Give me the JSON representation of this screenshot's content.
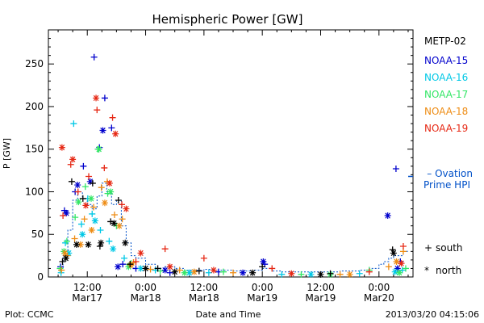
{
  "chart_data": {
    "type": "scatter",
    "title": "Hemispheric Power [GW]",
    "ylabel": "P [GW]",
    "xlabel": "Date and Time",
    "ylim": [
      0,
      290
    ],
    "y_ticks": [
      0,
      50,
      100,
      150,
      200,
      250
    ],
    "x_unit": "hours since 2013/03/16 00:00",
    "xlim": [
      28,
      103
    ],
    "x_ticks": [
      {
        "x": 36,
        "label": "12:00",
        "sublabel": "Mar17"
      },
      {
        "x": 48,
        "label": "0:00",
        "sublabel": "Mar18"
      },
      {
        "x": 60,
        "label": "12:00",
        "sublabel": "Mar18"
      },
      {
        "x": 72,
        "label": "0:00",
        "sublabel": "Mar19"
      },
      {
        "x": 84,
        "label": "12:00",
        "sublabel": "Mar19"
      },
      {
        "x": 96,
        "label": "0:00",
        "sublabel": "Mar20"
      }
    ],
    "legend_title": "METP-02",
    "legend_position": "right",
    "markers": [
      {
        "symbol": "+",
        "label": "south"
      },
      {
        "symbol": "*",
        "label": "north"
      }
    ],
    "series": [
      {
        "name": "NOAA-15",
        "color": "#0000cc",
        "south": [
          [
            30.5,
            12
          ],
          [
            31.3,
            78
          ],
          [
            33.5,
            100
          ],
          [
            35.2,
            130
          ],
          [
            37.4,
            258
          ],
          [
            38.5,
            152
          ],
          [
            39.6,
            210
          ],
          [
            41.0,
            175
          ],
          [
            43.3,
            15
          ],
          [
            46.0,
            10
          ],
          [
            53.0,
            5
          ],
          [
            63.0,
            6
          ],
          [
            72.5,
            15
          ],
          [
            99.5,
            127
          ],
          [
            100.4,
            18
          ]
        ],
        "north": [
          [
            31.7,
            75
          ],
          [
            34.0,
            108
          ],
          [
            36.6,
            112
          ],
          [
            39.2,
            172
          ],
          [
            42.3,
            12
          ],
          [
            52.0,
            8
          ],
          [
            68.0,
            5
          ],
          [
            72.2,
            18
          ],
          [
            97.8,
            72
          ],
          [
            99.8,
            10
          ]
        ]
      },
      {
        "name": "NOAA-16",
        "color": "#00c8e6",
        "south": [
          [
            30.6,
            5
          ],
          [
            31.5,
            40
          ],
          [
            33.2,
            180
          ],
          [
            34.8,
            62
          ],
          [
            36.1,
            92
          ],
          [
            37.0,
            74
          ],
          [
            38.7,
            55
          ],
          [
            40.5,
            42
          ],
          [
            43.6,
            22
          ],
          [
            50.0,
            8
          ],
          [
            61.0,
            5
          ],
          [
            76.0,
            3
          ],
          [
            92.0,
            4
          ],
          [
            100.8,
            8
          ]
        ],
        "north": [
          [
            32.2,
            28
          ],
          [
            35.0,
            50
          ],
          [
            37.6,
            66
          ],
          [
            41.3,
            33
          ],
          [
            47.0,
            10
          ],
          [
            57.0,
            5
          ],
          [
            82.0,
            3
          ],
          [
            99.3,
            6
          ]
        ]
      },
      {
        "name": "NOAA-17",
        "color": "#33e666",
        "south": [
          [
            30.4,
            10
          ],
          [
            31.8,
            42
          ],
          [
            33.5,
            70
          ],
          [
            35.6,
            106
          ],
          [
            38.2,
            150
          ],
          [
            40.2,
            98
          ],
          [
            42.0,
            60
          ],
          [
            45.0,
            16
          ],
          [
            51.0,
            7
          ],
          [
            64.0,
            6
          ],
          [
            80.0,
            3
          ],
          [
            94.0,
            8
          ],
          [
            101.5,
            10
          ]
        ],
        "north": [
          [
            31.2,
            30
          ],
          [
            34.2,
            88
          ],
          [
            36.8,
            92
          ],
          [
            38.4,
            150
          ],
          [
            40.8,
            100
          ],
          [
            44.5,
            12
          ],
          [
            56.0,
            5
          ],
          [
            86.0,
            3
          ],
          [
            100.2,
            5
          ]
        ]
      },
      {
        "name": "NOAA-18",
        "color": "#ee8c14",
        "south": [
          [
            30.7,
            8
          ],
          [
            31.9,
            25
          ],
          [
            33.4,
            45
          ],
          [
            35.4,
            68
          ],
          [
            37.3,
            82
          ],
          [
            38.9,
            105
          ],
          [
            40.1,
            112
          ],
          [
            41.6,
            73
          ],
          [
            43.2,
            68
          ],
          [
            45.5,
            17
          ],
          [
            49.0,
            9
          ],
          [
            55.0,
            8
          ],
          [
            66.0,
            5
          ],
          [
            88.0,
            3
          ],
          [
            98.0,
            12
          ],
          [
            101.0,
            30
          ]
        ],
        "north": [
          [
            31.4,
            28
          ],
          [
            34.6,
            38
          ],
          [
            36.9,
            55
          ],
          [
            39.6,
            87
          ],
          [
            42.6,
            60
          ],
          [
            45.0,
            14
          ],
          [
            58.0,
            6
          ],
          [
            90.0,
            3
          ],
          [
            99.6,
            18
          ]
        ]
      },
      {
        "name": "NOAA-19",
        "color": "#e62814",
        "south": [
          [
            31.0,
            72
          ],
          [
            32.6,
            132
          ],
          [
            34.1,
            100
          ],
          [
            36.3,
            118
          ],
          [
            38.0,
            196
          ],
          [
            39.5,
            128
          ],
          [
            41.2,
            187
          ],
          [
            43.1,
            85
          ],
          [
            46.0,
            18
          ],
          [
            52.0,
            33
          ],
          [
            60.0,
            22
          ],
          [
            74.0,
            10
          ],
          [
            94.0,
            6
          ],
          [
            101.0,
            36
          ]
        ],
        "north": [
          [
            30.8,
            152
          ],
          [
            33.0,
            138
          ],
          [
            35.7,
            84
          ],
          [
            37.8,
            210
          ],
          [
            40.6,
            110
          ],
          [
            41.8,
            168
          ],
          [
            44.0,
            80
          ],
          [
            47.0,
            28
          ],
          [
            53.0,
            12
          ],
          [
            62.0,
            8
          ],
          [
            78.0,
            4
          ],
          [
            100.6,
            16
          ]
        ]
      },
      {
        "name": "METP-02",
        "color": "#000000",
        "south": [
          [
            30.9,
            18
          ],
          [
            32.8,
            112
          ],
          [
            35.1,
            92
          ],
          [
            37.1,
            110
          ],
          [
            38.6,
            36
          ],
          [
            40.8,
            65
          ],
          [
            42.4,
            90
          ],
          [
            44.8,
            15
          ],
          [
            50.5,
            10
          ],
          [
            59.0,
            7
          ],
          [
            72.0,
            12
          ],
          [
            86.0,
            4
          ],
          [
            98.8,
            32
          ]
        ],
        "north": [
          [
            31.6,
            22
          ],
          [
            33.8,
            38
          ],
          [
            36.2,
            38
          ],
          [
            38.8,
            40
          ],
          [
            41.5,
            63
          ],
          [
            43.8,
            40
          ],
          [
            48.0,
            10
          ],
          [
            54.0,
            6
          ],
          [
            70.0,
            5
          ],
          [
            84.0,
            3
          ],
          [
            99.0,
            28
          ]
        ]
      }
    ],
    "ovation": {
      "name": "Ovation Prime HPI",
      "label_line1": "– Ovation",
      "label_line2": "Prime HPI",
      "color": "#0050c8",
      "x": [
        30,
        31,
        32,
        33,
        34,
        35,
        36,
        37,
        38,
        39,
        40,
        41,
        42,
        43,
        44,
        45,
        46,
        48,
        50,
        52,
        54,
        56,
        58,
        60,
        62,
        64,
        66,
        68,
        70,
        72,
        74,
        76,
        78,
        80,
        82,
        84,
        86,
        88,
        90,
        92,
        94,
        96,
        97,
        98,
        99,
        100,
        101,
        102
      ],
      "y": [
        8,
        25,
        55,
        90,
        100,
        92,
        85,
        80,
        95,
        110,
        100,
        85,
        90,
        60,
        40,
        25,
        22,
        15,
        10,
        12,
        10,
        8,
        8,
        9,
        8,
        8,
        7,
        7,
        8,
        10,
        7,
        6,
        6,
        6,
        6,
        6,
        6,
        7,
        7,
        8,
        10,
        15,
        18,
        22,
        25,
        25,
        30,
        30
      ]
    },
    "current_marker": 118
  },
  "footer": {
    "left": "Plot: CCMC",
    "center": "Date and Time",
    "right": "2013/03/20 04:15:06"
  }
}
